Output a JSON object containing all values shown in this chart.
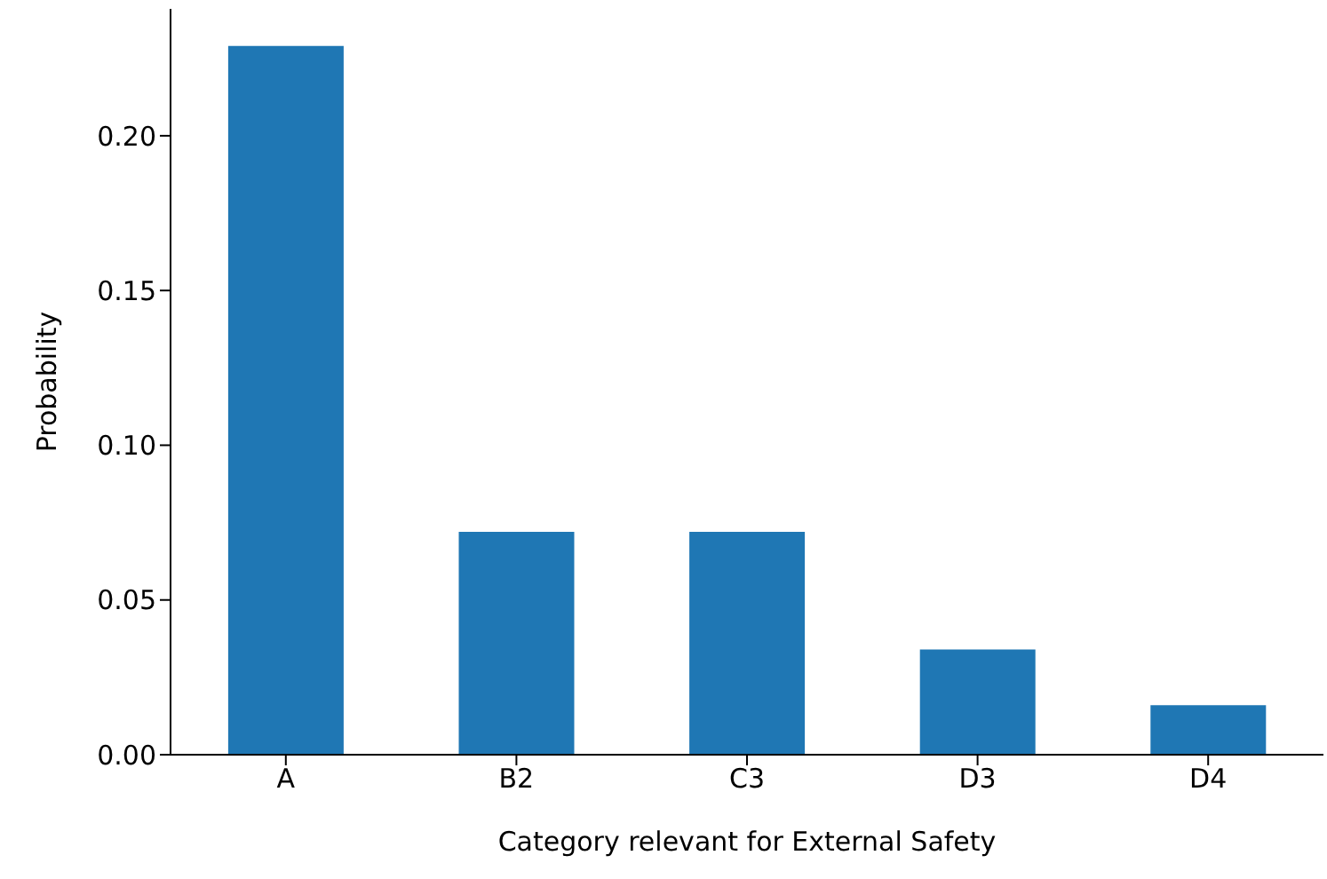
{
  "chart_data": {
    "type": "bar",
    "xlabel": "Category relevant for External Safety",
    "ylabel": "Probability",
    "categories": [
      "A",
      "B2",
      "C3",
      "D3",
      "D4"
    ],
    "values": [
      0.229,
      0.072,
      0.072,
      0.034,
      0.016
    ],
    "color": "#1f77b4",
    "ylim": [
      0,
      0.241
    ],
    "yticks": [
      {
        "value": 0,
        "label": "0.00"
      },
      {
        "value": 0.05,
        "label": "0.05"
      },
      {
        "value": 0.1,
        "label": "0.10"
      },
      {
        "value": 0.15,
        "label": "0.15"
      },
      {
        "value": 0.2,
        "label": "0.20"
      }
    ],
    "grid": false,
    "legend": false
  }
}
